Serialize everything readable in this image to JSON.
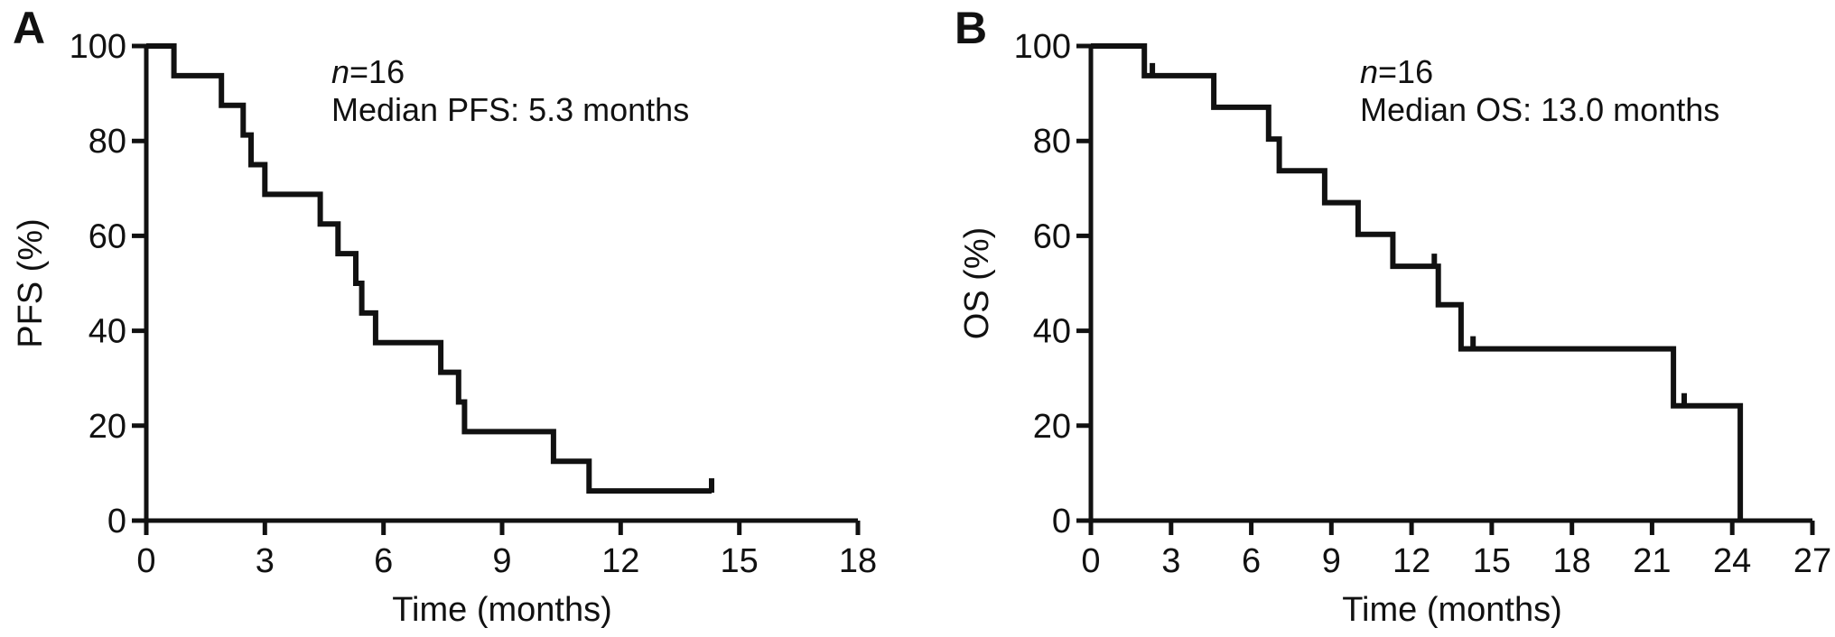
{
  "figure": {
    "background": "#ffffff",
    "ink": "#111111"
  },
  "chart_data": [
    {
      "type": "line",
      "subtype": "kaplan_meier_step",
      "panel_label": "A",
      "ylabel": "PFS (%)",
      "xlabel": "Time (months)",
      "ann_n_italic": "n",
      "ann_n_rest": "=16",
      "median_label": "Median PFS: 5.3 months",
      "n_patients": 16,
      "median_months": 5.3,
      "xlim": [
        0,
        18
      ],
      "ylim": [
        0,
        100
      ],
      "x_ticks": [
        0,
        3,
        6,
        9,
        12,
        15,
        18
      ],
      "y_ticks": [
        0,
        20,
        40,
        60,
        80,
        100
      ],
      "grid": false,
      "legend": false,
      "steps": [
        [
          0,
          100
        ],
        [
          0.7,
          93.75
        ],
        [
          1.9,
          87.5
        ],
        [
          2.45,
          81.25
        ],
        [
          2.65,
          75
        ],
        [
          3.0,
          68.75
        ],
        [
          4.4,
          62.5
        ],
        [
          4.85,
          56.25
        ],
        [
          5.3,
          50
        ],
        [
          5.45,
          43.75
        ],
        [
          5.8,
          37.5
        ],
        [
          7.45,
          31.25
        ],
        [
          7.9,
          25
        ],
        [
          8.05,
          18.75
        ],
        [
          10.3,
          12.5
        ],
        [
          11.2,
          6.25
        ]
      ],
      "curve_end_x": 14.3,
      "censor_marks": [
        [
          14.3,
          6.25
        ]
      ]
    },
    {
      "type": "line",
      "subtype": "kaplan_meier_step",
      "panel_label": "B",
      "ylabel": "OS (%)",
      "xlabel": "Time (months)",
      "ann_n_italic": "n",
      "ann_n_rest": "=16",
      "median_label": "Median OS: 13.0 months",
      "n_patients": 16,
      "median_months": 13.0,
      "xlim": [
        0,
        27
      ],
      "ylim": [
        0,
        100
      ],
      "x_ticks": [
        0,
        3,
        6,
        9,
        12,
        15,
        18,
        21,
        24,
        27
      ],
      "y_ticks": [
        0,
        20,
        40,
        60,
        80,
        100
      ],
      "grid": false,
      "legend": false,
      "steps": [
        [
          0,
          100
        ],
        [
          2.0,
          93.75
        ],
        [
          4.6,
          87.1
        ],
        [
          6.65,
          80.4
        ],
        [
          7.05,
          73.7
        ],
        [
          8.75,
          67.0
        ],
        [
          10.0,
          60.3
        ],
        [
          11.3,
          53.6
        ],
        [
          13.0,
          45.5
        ],
        [
          13.85,
          36.2
        ],
        [
          21.8,
          24.2
        ],
        [
          24.3,
          0
        ]
      ],
      "curve_end_x": 24.3,
      "censor_marks": [
        [
          2.3,
          93.75
        ],
        [
          12.85,
          53.6
        ],
        [
          14.3,
          36.2
        ],
        [
          22.2,
          24.2
        ]
      ]
    }
  ]
}
